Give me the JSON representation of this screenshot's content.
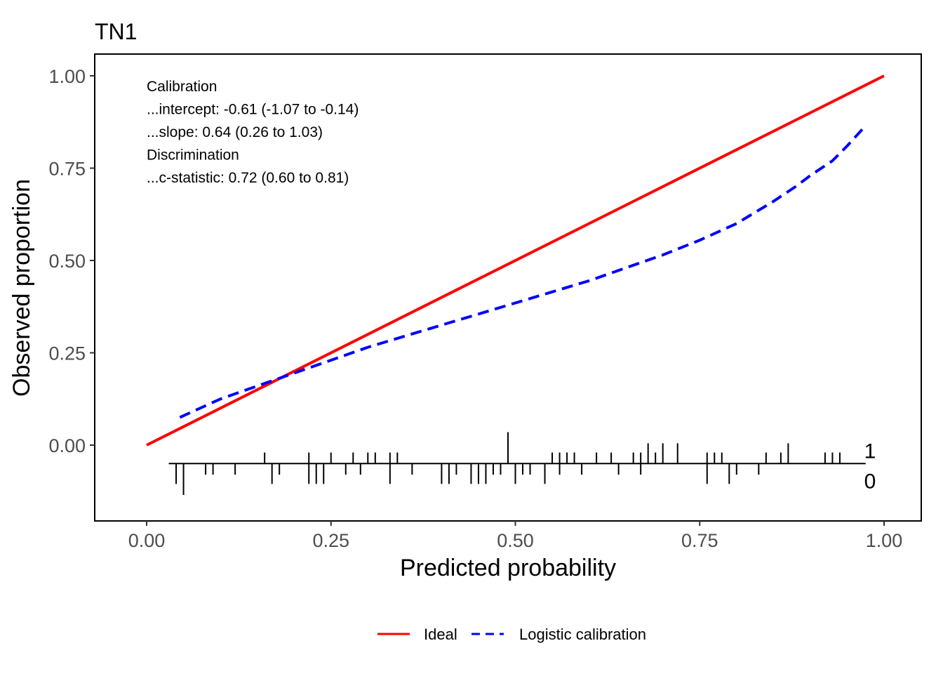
{
  "chart_data": {
    "type": "line",
    "title": "TN1",
    "xlabel": "Predicted probability",
    "ylabel": "Observed proportion",
    "xlim": [
      0,
      1
    ],
    "ylim": [
      -0.135,
      1.055
    ],
    "x_ticks": [
      "0.00",
      "0.25",
      "0.50",
      "0.75",
      "1.00"
    ],
    "y_ticks": [
      "0.00",
      "0.25",
      "0.50",
      "0.75",
      "1.00"
    ],
    "grid": false,
    "legend_position": "bottom",
    "series": [
      {
        "name": "Ideal",
        "color": "#ff0000",
        "dash": "solid",
        "x": [
          0,
          1
        ],
        "y": [
          0,
          1
        ]
      },
      {
        "name": "Logistic calibration",
        "color": "#0000ff",
        "dash": "dashed",
        "x": [
          0.045,
          0.1,
          0.15,
          0.2,
          0.25,
          0.3,
          0.35,
          0.4,
          0.45,
          0.5,
          0.55,
          0.6,
          0.65,
          0.7,
          0.75,
          0.8,
          0.85,
          0.88,
          0.9,
          0.93,
          0.95,
          0.975
        ],
        "y": [
          0.075,
          0.125,
          0.16,
          0.195,
          0.23,
          0.265,
          0.295,
          0.325,
          0.355,
          0.385,
          0.415,
          0.445,
          0.48,
          0.515,
          0.555,
          0.6,
          0.66,
          0.7,
          0.73,
          0.77,
          0.81,
          0.865
        ]
      }
    ],
    "annotations": [
      "Calibration",
      "...intercept: -0.61 (-1.07 to -0.14)",
      "...slope: 0.64 (0.26 to 1.03)",
      "Discrimination",
      "...c-statistic: 0.72 (0.60 to 0.81)"
    ],
    "distribution": {
      "baseline_y": -0.05,
      "baseline_x": [
        0.03,
        0.975
      ],
      "label_upper": "1",
      "label_lower": "0",
      "events": [
        0.16,
        0.22,
        0.25,
        0.28,
        0.3,
        0.31,
        0.33,
        0.34,
        0.49,
        0.55,
        0.56,
        0.57,
        0.58,
        0.61,
        0.63,
        0.66,
        0.67,
        0.68,
        0.69,
        0.7,
        0.72,
        0.76,
        0.77,
        0.78,
        0.84,
        0.86,
        0.87,
        0.92,
        0.93,
        0.94
      ],
      "event_heights": [
        0.03,
        0.03,
        0.03,
        0.03,
        0.03,
        0.03,
        0.03,
        0.03,
        0.085,
        0.03,
        0.03,
        0.03,
        0.03,
        0.03,
        0.03,
        0.03,
        0.03,
        0.055,
        0.03,
        0.055,
        0.055,
        0.03,
        0.03,
        0.03,
        0.03,
        0.03,
        0.055,
        0.03,
        0.03,
        0.03
      ],
      "nonevents": [
        0.04,
        0.05,
        0.08,
        0.09,
        0.12,
        0.17,
        0.18,
        0.22,
        0.23,
        0.24,
        0.27,
        0.29,
        0.33,
        0.36,
        0.4,
        0.41,
        0.42,
        0.44,
        0.45,
        0.46,
        0.47,
        0.48,
        0.5,
        0.51,
        0.52,
        0.54,
        0.56,
        0.59,
        0.64,
        0.67,
        0.76,
        0.79,
        0.8,
        0.83
      ],
      "nonevent_heights": [
        0.055,
        0.085,
        0.03,
        0.03,
        0.03,
        0.055,
        0.03,
        0.055,
        0.055,
        0.055,
        0.03,
        0.03,
        0.055,
        0.03,
        0.055,
        0.055,
        0.03,
        0.055,
        0.055,
        0.055,
        0.03,
        0.03,
        0.055,
        0.03,
        0.03,
        0.055,
        0.03,
        0.03,
        0.03,
        0.03,
        0.055,
        0.055,
        0.03,
        0.03
      ]
    }
  }
}
